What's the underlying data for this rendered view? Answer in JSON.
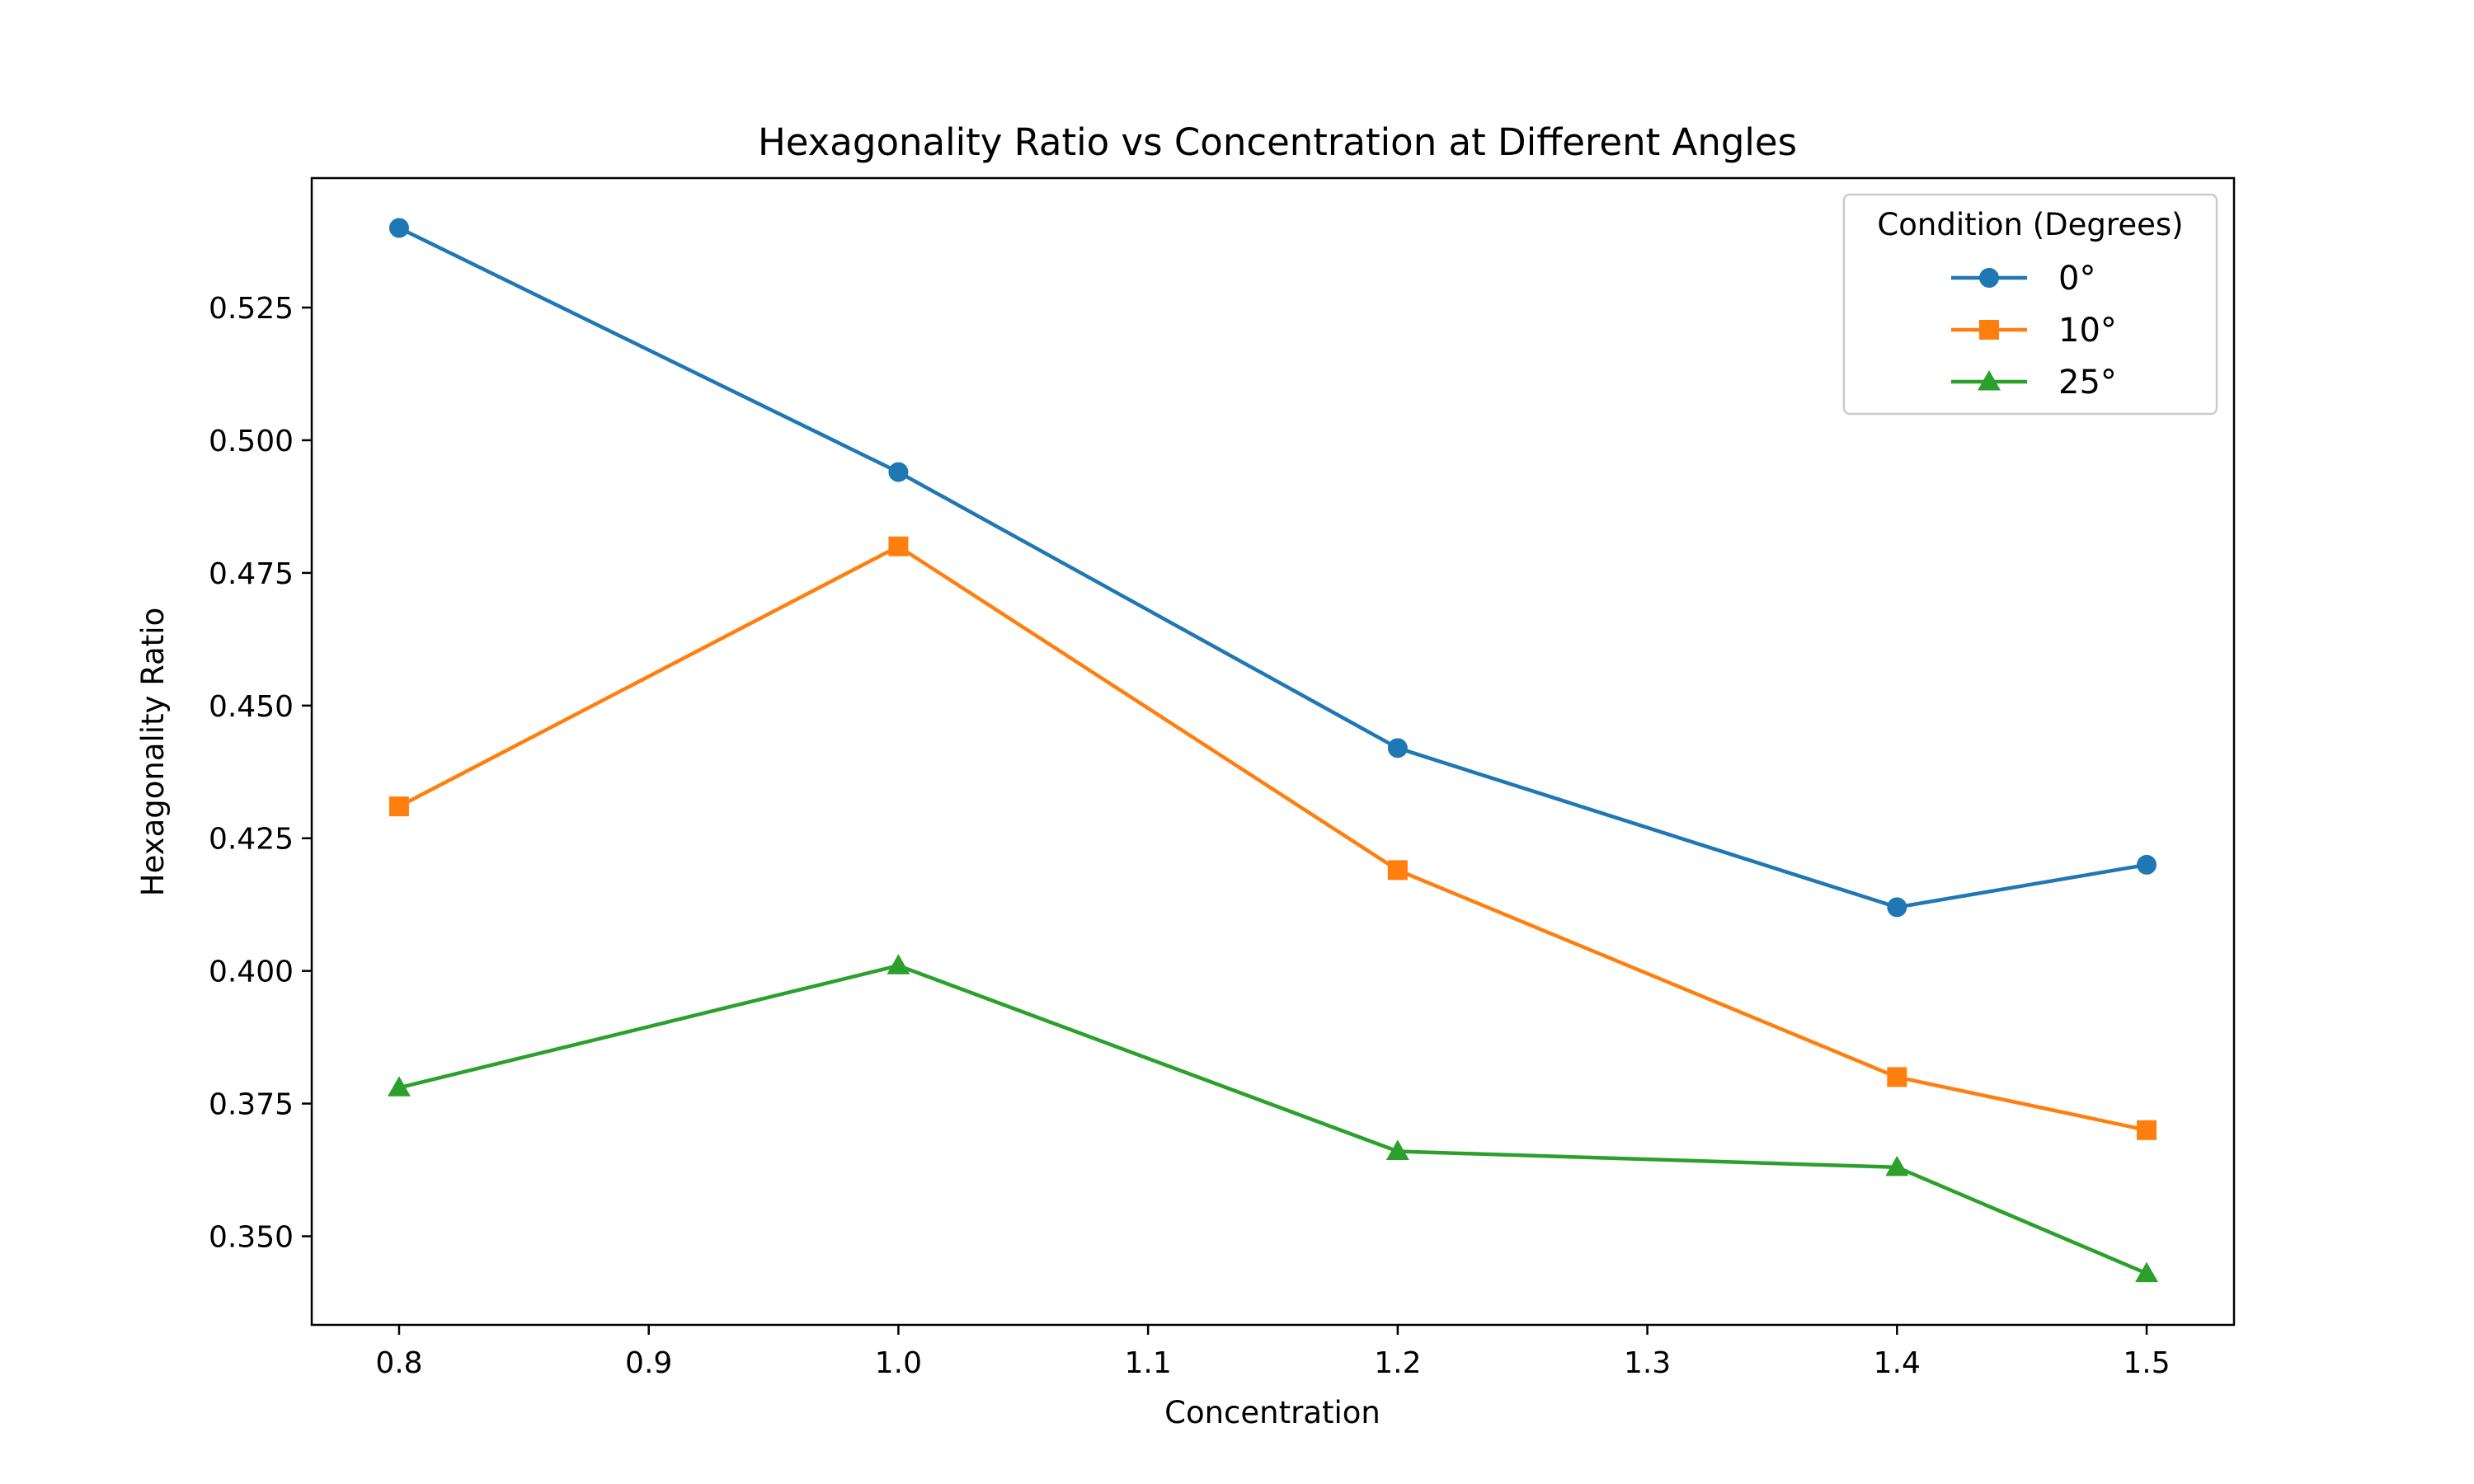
{
  "chart_data": {
    "type": "line",
    "title": "Hexagonality Ratio vs Concentration at Different Angles",
    "xlabel": "Concentration",
    "ylabel": "Hexagonality Ratio",
    "xlim": [
      0.765,
      1.535
    ],
    "ylim": [
      0.3333,
      0.5494
    ],
    "xticks": [
      0.8,
      0.9,
      1.0,
      1.1,
      1.2,
      1.3,
      1.4,
      1.5
    ],
    "xtick_labels": [
      "0.8",
      "0.9",
      "1.0",
      "1.1",
      "1.2",
      "1.3",
      "1.4",
      "1.5"
    ],
    "yticks": [
      0.35,
      0.375,
      0.4,
      0.425,
      0.45,
      0.475,
      0.5,
      0.525
    ],
    "ytick_labels": [
      "0.350",
      "0.375",
      "0.400",
      "0.425",
      "0.450",
      "0.475",
      "0.500",
      "0.525"
    ],
    "grid": false,
    "legend": {
      "title": "Condition (Degrees)",
      "placement": "top-right"
    },
    "x": [
      0.8,
      1.0,
      1.2,
      1.4,
      1.5
    ],
    "series": [
      {
        "name": "0°",
        "values": [
          0.54,
          0.494,
          0.442,
          0.412,
          0.42
        ],
        "color": "#1f77b4",
        "marker": "circle"
      },
      {
        "name": "10°",
        "values": [
          0.431,
          0.48,
          0.419,
          0.38,
          0.37
        ],
        "color": "#ff7f0e",
        "marker": "square"
      },
      {
        "name": "25°",
        "values": [
          0.378,
          0.401,
          0.366,
          0.363,
          0.343
        ],
        "color": "#2ca02c",
        "marker": "triangle"
      }
    ]
  }
}
